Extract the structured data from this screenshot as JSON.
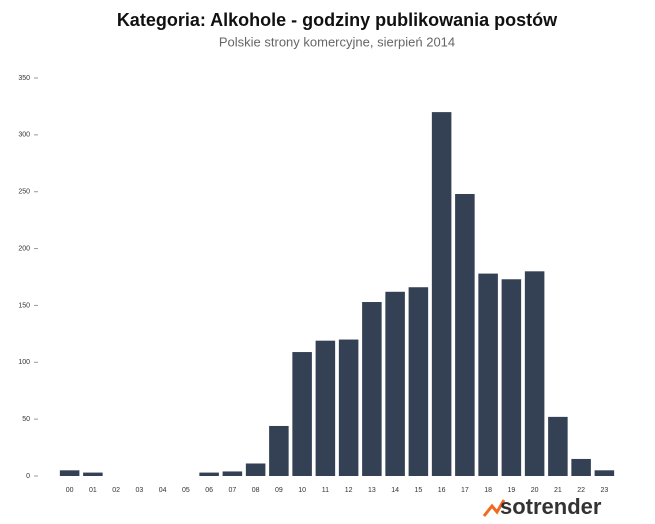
{
  "chart_data": {
    "type": "bar",
    "title": "Kategoria: Alkohole - godziny publikowania postów",
    "subtitle": "Polskie strony komercyjne, sierpień 2014",
    "categories": [
      "00",
      "01",
      "02",
      "03",
      "04",
      "05",
      "06",
      "07",
      "08",
      "09",
      "10",
      "11",
      "12",
      "13",
      "14",
      "15",
      "16",
      "17",
      "18",
      "19",
      "20",
      "21",
      "22",
      "23"
    ],
    "values": [
      5,
      3,
      0,
      0,
      0,
      0,
      3,
      4,
      11,
      44,
      109,
      119,
      120,
      153,
      162,
      166,
      320,
      248,
      178,
      173,
      180,
      52,
      15,
      5
    ],
    "color": "#344154",
    "ylim": [
      0,
      350
    ],
    "yticks": [
      0,
      50,
      100,
      150,
      200,
      250,
      300,
      350
    ],
    "grid": false,
    "logo": "sotrender"
  }
}
